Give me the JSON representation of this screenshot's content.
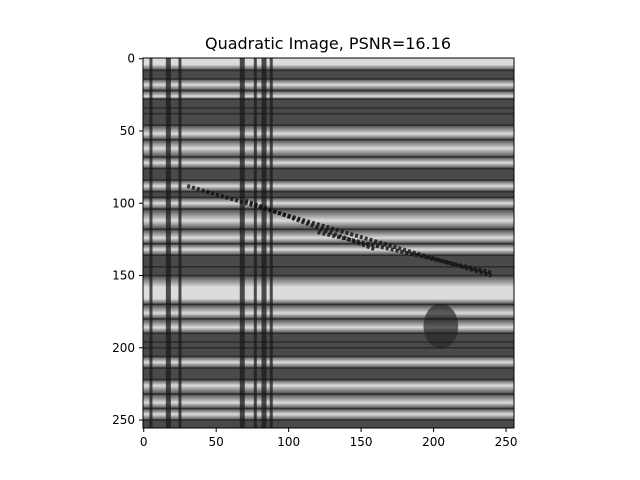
{
  "chart_data": {
    "type": "heatmap",
    "title": "Quadratic Image, PSNR=16.16",
    "colormap": "gray",
    "image_shape": [
      256,
      256
    ],
    "xlim": [
      -0.5,
      255.5
    ],
    "ylim": [
      255.5,
      -0.5
    ],
    "x_ticks": [
      0,
      50,
      100,
      150,
      200,
      250
    ],
    "y_ticks": [
      0,
      50,
      100,
      150,
      200,
      250
    ],
    "x_tick_labels": [
      "0",
      "50",
      "100",
      "150",
      "200",
      "250"
    ],
    "y_tick_labels": [
      "0",
      "50",
      "100",
      "150",
      "200",
      "250"
    ],
    "approx_features": {
      "horizontal_dark_rows": [
        8,
        14,
        22,
        28,
        34,
        38,
        46,
        56,
        68,
        76,
        84,
        92,
        96,
        104,
        118,
        128,
        136,
        144,
        150,
        170,
        180,
        190,
        196,
        200,
        206,
        214,
        222,
        232,
        242,
        250
      ],
      "horizontal_light_rows": [
        4,
        18,
        26,
        52,
        62,
        72,
        88,
        100,
        112,
        124,
        132,
        158,
        166,
        176,
        186,
        210,
        226,
        238,
        246
      ],
      "vertical_dark_columns": [
        5,
        17,
        25,
        68,
        77,
        83,
        88
      ],
      "diagonal_dark_lines": [
        {
          "from": [
            30,
            88
          ],
          "to": [
            240,
            150
          ]
        },
        {
          "from": [
            70,
            98
          ],
          "to": [
            160,
            132
          ]
        },
        {
          "from": [
            120,
            120
          ],
          "to": [
            240,
            148
          ]
        }
      ],
      "dark_blob": {
        "center": [
          205,
          185
        ],
        "radius": 12
      }
    }
  }
}
